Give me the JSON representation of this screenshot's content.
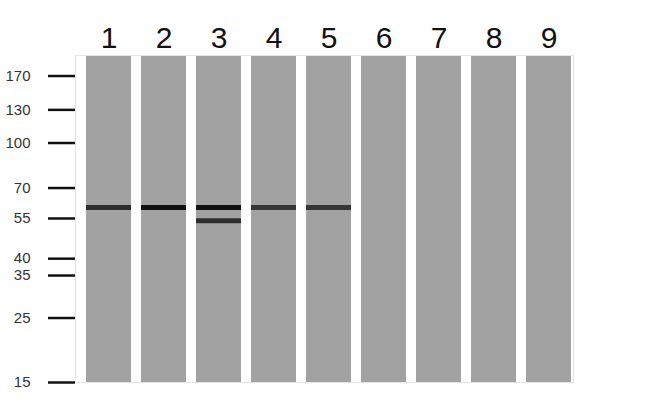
{
  "chart_data": {
    "type": "western_blot",
    "categories": [
      "1",
      "2",
      "3",
      "4",
      "5",
      "6",
      "7",
      "8",
      "9"
    ],
    "log": "y",
    "ylim": [
      15,
      200
    ],
    "yticks": [
      170,
      130,
      100,
      70,
      55,
      40,
      35,
      25,
      15
    ],
    "color": "#a2a2a2",
    "bands": [
      {
        "lane": "1",
        "value": 60,
        "intensity": 0.8
      },
      {
        "lane": "2",
        "value": 60,
        "intensity": 1.0
      },
      {
        "lane": "3",
        "value": 60,
        "intensity": 1.0
      },
      {
        "lane": "3",
        "value": 54,
        "intensity": 0.8
      },
      {
        "lane": "4",
        "value": 60,
        "intensity": 0.75
      },
      {
        "lane": "5",
        "value": 60,
        "intensity": 0.75
      }
    ]
  }
}
